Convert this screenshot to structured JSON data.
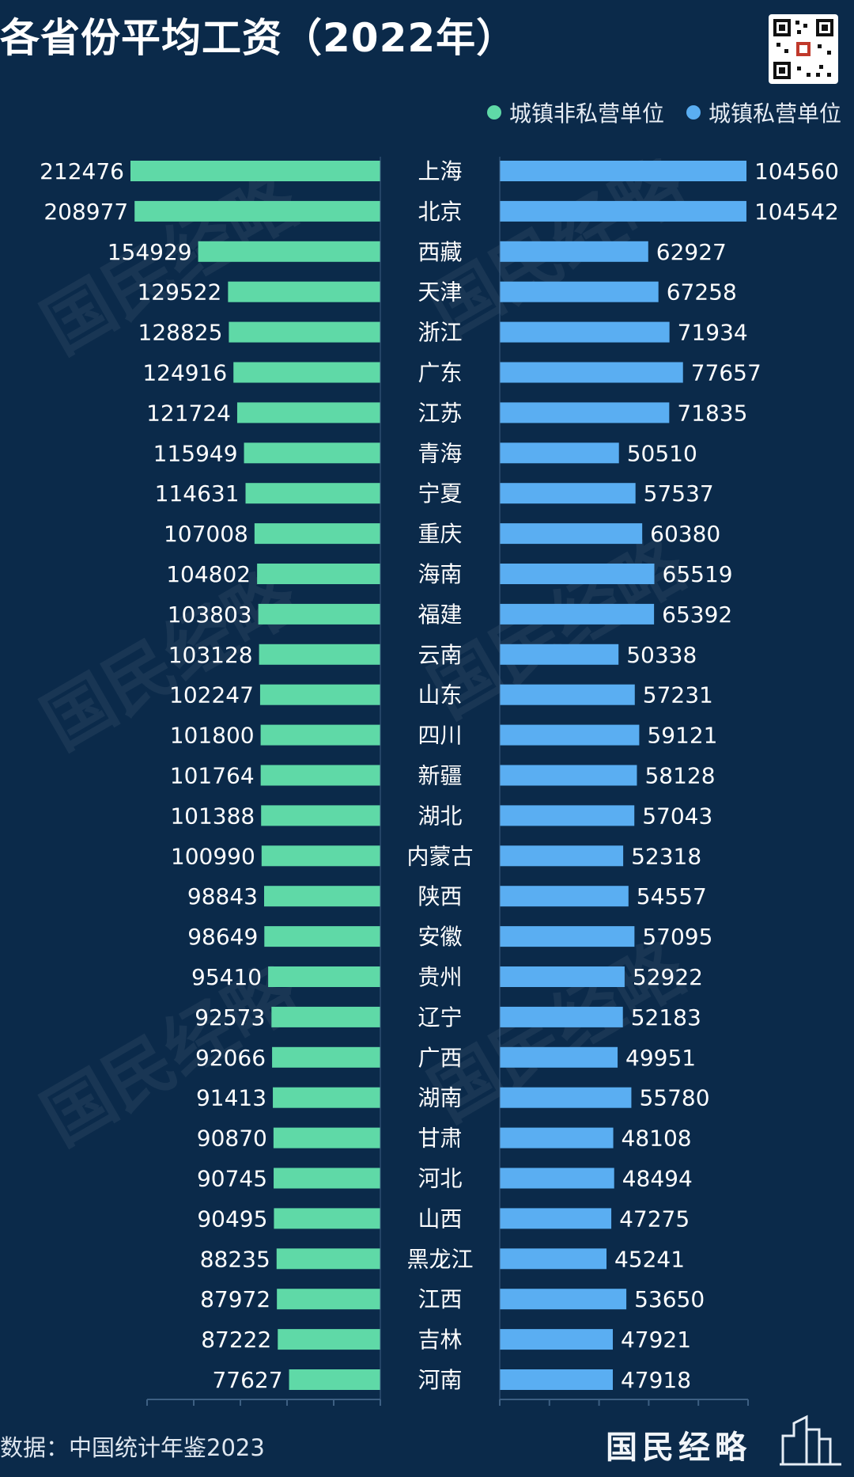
{
  "page": {
    "title": "各省份平均工资（2022年）",
    "source": "数据：中国统计年鉴2023",
    "brand": "国民经略",
    "watermark": "国民经略"
  },
  "colors": {
    "background": "#0b2a4a",
    "non_private": "#5fd9a7",
    "private": "#5aaef2",
    "axis": "#3d5f82"
  },
  "icons": {
    "qr": "qr-code-icon",
    "brand_graphic": "building-outline-icon"
  },
  "chart_data": {
    "type": "bar",
    "orientation": "horizontal-butterfly",
    "legend_position": "top-right",
    "grid": false,
    "xlim_left": [
      0,
      215000
    ],
    "xlim_right": [
      0,
      106000
    ],
    "categories": [
      "上海",
      "北京",
      "西藏",
      "天津",
      "浙江",
      "广东",
      "江苏",
      "青海",
      "宁夏",
      "重庆",
      "海南",
      "福建",
      "云南",
      "山东",
      "四川",
      "新疆",
      "湖北",
      "内蒙古",
      "陕西",
      "安徽",
      "贵州",
      "辽宁",
      "广西",
      "湖南",
      "甘肃",
      "河北",
      "山西",
      "黑龙江",
      "江西",
      "吉林",
      "河南"
    ],
    "series": [
      {
        "name": "城镇非私营单位",
        "values": [
          212476,
          208977,
          154929,
          129522,
          128825,
          124916,
          121724,
          115949,
          114631,
          107008,
          104802,
          103803,
          103128,
          102247,
          101800,
          101764,
          101388,
          100990,
          98843,
          98649,
          95410,
          92573,
          92066,
          91413,
          90870,
          90745,
          90495,
          88235,
          87972,
          87222,
          77627
        ]
      },
      {
        "name": "城镇私营单位",
        "values": [
          104560,
          104542,
          62927,
          67258,
          71934,
          77657,
          71835,
          50510,
          57537,
          60380,
          65519,
          65392,
          50338,
          57231,
          59121,
          58128,
          57043,
          52318,
          54557,
          57095,
          52922,
          52183,
          49951,
          55780,
          48108,
          48494,
          47275,
          45241,
          53650,
          47921,
          47918
        ]
      }
    ]
  }
}
